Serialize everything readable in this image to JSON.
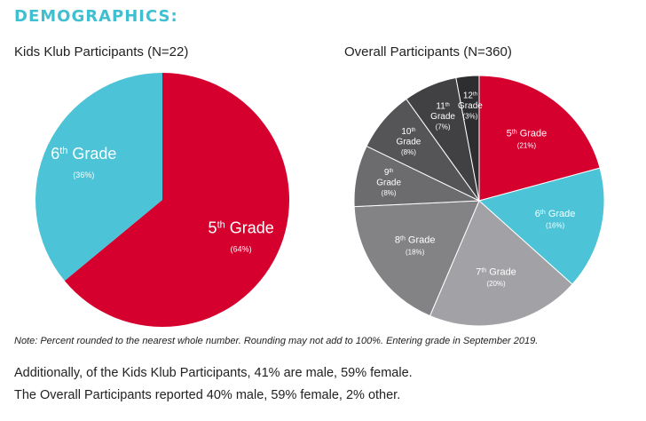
{
  "heading": "DEMOGRAPHICS:",
  "chart_data": [
    {
      "type": "pie",
      "title": "Kids Klub Participants (N=22)",
      "series": [
        {
          "label": "5th Grade",
          "grade": "5",
          "value": 64,
          "display": "(64%)",
          "color": "#d6002f"
        },
        {
          "label": "6th Grade",
          "grade": "6",
          "value": 36,
          "display": "(36%)",
          "color": "#4cc3d6"
        }
      ]
    },
    {
      "type": "pie",
      "title": "Overall Participants (N=360)",
      "series": [
        {
          "label": "5th Grade",
          "grade": "5",
          "value": 21,
          "display": "(21%)",
          "color": "#d6002f"
        },
        {
          "label": "6th Grade",
          "grade": "6",
          "value": 16,
          "display": "(16%)",
          "color": "#4cc3d6"
        },
        {
          "label": "7th Grade",
          "grade": "7",
          "value": 20,
          "display": "(20%)",
          "color": "#a2a2a6"
        },
        {
          "label": "8th Grade",
          "grade": "8",
          "value": 18,
          "display": "(18%)",
          "color": "#838386"
        },
        {
          "label": "9th Grade",
          "grade": "9",
          "value": 8,
          "display": "(8%)",
          "color": "#6c6c6f"
        },
        {
          "label": "10th Grade",
          "grade": "10",
          "value": 8,
          "display": "(8%)",
          "color": "#555558"
        },
        {
          "label": "11th Grade",
          "grade": "11",
          "value": 7,
          "display": "(7%)",
          "color": "#414144"
        },
        {
          "label": "12th Grade",
          "grade": "12",
          "value": 3,
          "display": "(3%)",
          "color": "#2e2e31"
        }
      ]
    }
  ],
  "note": "Note: Percent rounded to the nearest whole number. Rounding may not add to 100%. Entering grade in September 2019.",
  "summary": {
    "line1": "Additionally, of the Kids Klub Participants, 41% are male, 59% female.",
    "line2": "The Overall Participants reported 40% male, 59% female, 2% other."
  }
}
